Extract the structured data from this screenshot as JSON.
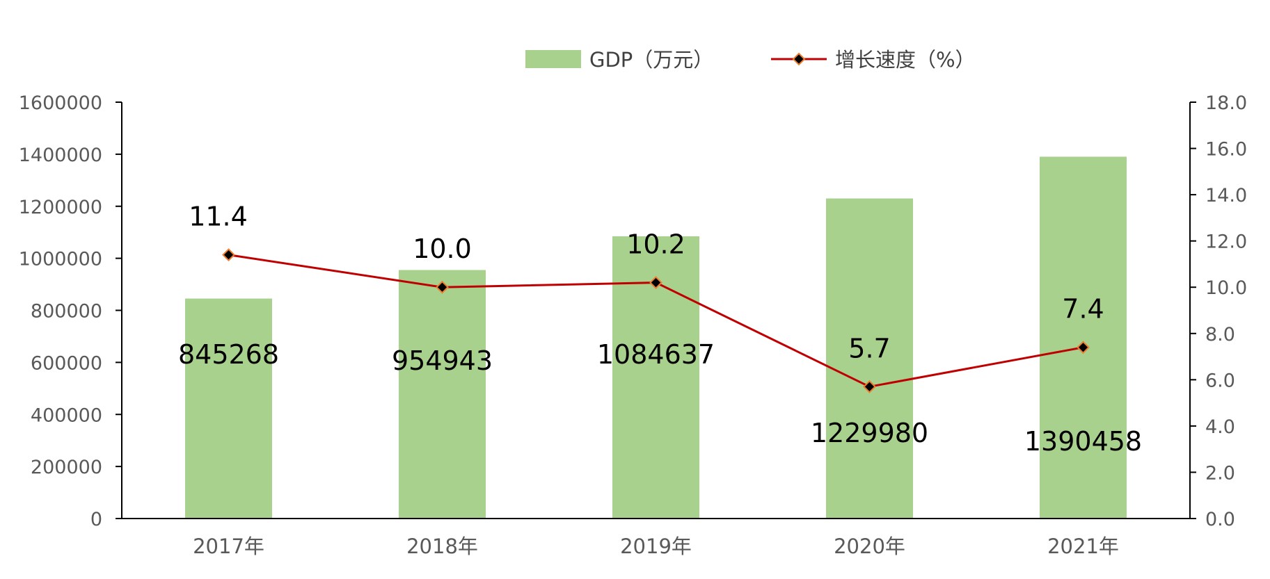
{
  "chart_data": {
    "type": "bar",
    "categories": [
      "2017年",
      "2018年",
      "2019年",
      "2020年",
      "2021年"
    ],
    "series": [
      {
        "name": "GDP（万元）",
        "type": "bar",
        "axis": "left",
        "color": "#a9d18e",
        "values": [
          845268,
          954943,
          1084637,
          1229980,
          1390458
        ],
        "labels": [
          "845268",
          "954943",
          "1084637",
          "1229980",
          "1390458"
        ]
      },
      {
        "name": "增长速度（%）",
        "type": "line",
        "axis": "right",
        "color": "#c00000",
        "marker_color": "#000000",
        "marker_edge_color": "#ed7d31",
        "values": [
          11.4,
          10.0,
          10.2,
          5.7,
          7.4
        ],
        "labels": [
          "11.4",
          "10.0",
          "10.2",
          "5.7",
          "7.4"
        ]
      }
    ],
    "left_axis": {
      "ylim": [
        0,
        1600000
      ],
      "ticks": [
        "0",
        "200000",
        "400000",
        "600000",
        "800000",
        "1000000",
        "1200000",
        "1400000",
        "1600000"
      ]
    },
    "right_axis": {
      "ylim": [
        0,
        18
      ],
      "ticks": [
        "0.0",
        "2.0",
        "4.0",
        "6.0",
        "8.0",
        "10.0",
        "12.0",
        "14.0",
        "16.0",
        "18.0"
      ]
    },
    "legend_position": "top-center",
    "grid": false
  }
}
